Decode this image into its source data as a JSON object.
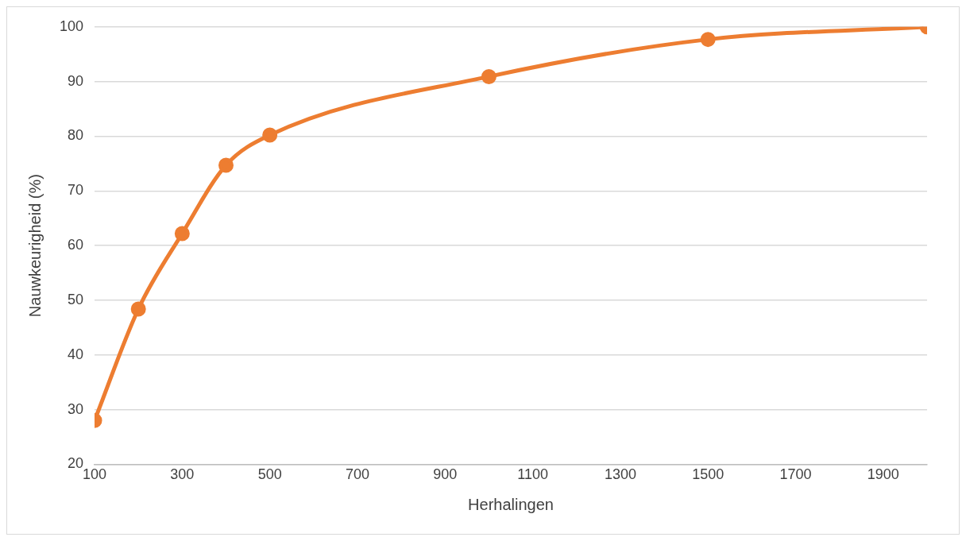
{
  "chart_data": {
    "type": "line",
    "xlabel": "Herhalingen",
    "ylabel": "Nauwkeurigheid (%)",
    "x": [
      100,
      200,
      300,
      400,
      500,
      1000,
      1500,
      2000
    ],
    "series": [
      {
        "color": "#ed7d31",
        "values": [
          28,
          48.4,
          62.2,
          74.7,
          80.2,
          90.9,
          97.7,
          100
        ]
      }
    ],
    "xlim": [
      100,
      2000
    ],
    "xticks": [
      100,
      300,
      500,
      700,
      900,
      1100,
      1300,
      1500,
      1700,
      1900
    ],
    "ylim": [
      20,
      100
    ],
    "yticks": [
      20,
      30,
      40,
      50,
      60,
      70,
      80,
      90,
      100
    ],
    "grid": "y",
    "legend": false,
    "marker": "circle",
    "line_style": "solid"
  }
}
